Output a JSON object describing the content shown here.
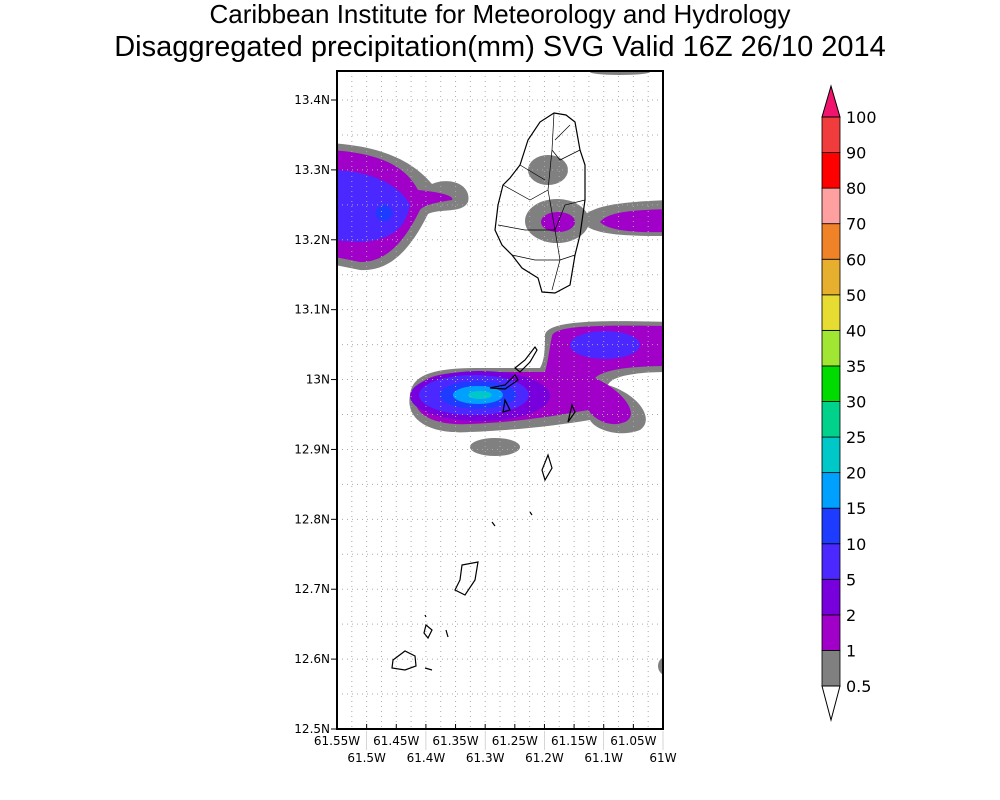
{
  "header": {
    "title_line1": "Caribbean Institute for Meteorology and Hydrology",
    "title_line2": "Disaggregated precipitation(mm) SVG Valid 16Z 26/10 2014"
  },
  "chart_data": {
    "type": "heatmap",
    "title": "Disaggregated precipitation(mm) SVG Valid 16Z 26/10 2014",
    "xlabel": "",
    "ylabel": "",
    "xlim": [
      -61.55,
      -61.0
    ],
    "ylim": [
      12.5,
      13.44
    ],
    "grid": true,
    "x_ticks": [
      "61.55W",
      "61.5W",
      "61.45W",
      "61.4W",
      "61.35W",
      "61.3W",
      "61.25W",
      "61.2W",
      "61.15W",
      "61.1W",
      "61.05W",
      "61W"
    ],
    "x_tick_values": [
      -61.55,
      -61.5,
      -61.45,
      -61.4,
      -61.35,
      -61.3,
      -61.25,
      -61.2,
      -61.15,
      -61.1,
      -61.05,
      -61.0
    ],
    "y_ticks": [
      "12.5N",
      "12.6N",
      "12.7N",
      "12.8N",
      "12.9N",
      "13N",
      "13.1N",
      "13.2N",
      "13.3N",
      "13.4N"
    ],
    "y_tick_values": [
      12.5,
      12.6,
      12.7,
      12.8,
      12.9,
      13.0,
      13.1,
      13.2,
      13.3,
      13.4
    ],
    "colorbar": {
      "labels": [
        "0.5",
        "1",
        "2",
        "5",
        "10",
        "15",
        "20",
        "25",
        "30",
        "35",
        "40",
        "50",
        "60",
        "70",
        "80",
        "90",
        "100"
      ],
      "colors": [
        "#808080",
        "#a000c8",
        "#7800dc",
        "#4b28ff",
        "#1e3cff",
        "#00a0ff",
        "#00c8c8",
        "#00d28c",
        "#00dc00",
        "#a0e632",
        "#e6dc32",
        "#e6af2d",
        "#f08228",
        "#ffa0a0",
        "#ff0000",
        "#f03c3c"
      ],
      "over_color": "#f0146e",
      "under_color": "#ffffff"
    },
    "precip_cells": [
      {
        "lon": -61.47,
        "lat": 13.24,
        "max_class": "15"
      },
      {
        "lon": -61.09,
        "lat": 13.05,
        "max_class": "10"
      },
      {
        "lon": -61.3,
        "lat": 12.98,
        "max_class": "25"
      },
      {
        "lon": -61.21,
        "lat": 13.23,
        "max_class": "2"
      },
      {
        "lon": -61.04,
        "lat": 13.23,
        "max_class": "2"
      }
    ]
  }
}
